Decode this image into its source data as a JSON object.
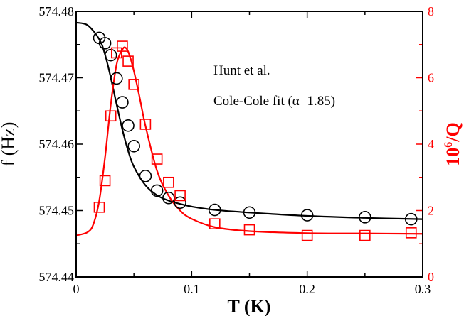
{
  "chart_data": {
    "type": "scatter",
    "title": "",
    "annotations": [
      "Hunt et al.",
      "Cole-Cole fit (α=1.85)"
    ],
    "x_axis": {
      "label": "T (K)",
      "min": 0,
      "max": 0.3,
      "ticks": [
        0,
        0.1,
        0.2,
        0.3
      ],
      "tick_labels": [
        "0",
        "0.1",
        "0.2",
        "0.3"
      ]
    },
    "y_axis_left": {
      "label": "f (Hz)",
      "min": 574.44,
      "max": 574.48,
      "ticks": [
        574.44,
        574.45,
        574.46,
        574.47,
        574.48
      ],
      "tick_labels": [
        "574.44",
        "574.45",
        "574.46",
        "574.47",
        "574.48"
      ],
      "color": "#000000"
    },
    "y_axis_right": {
      "label_base": "10",
      "label_sup": "6",
      "label_tail": "/Q",
      "min": 0,
      "max": 8,
      "ticks": [
        0,
        2,
        4,
        6,
        8
      ],
      "tick_labels": [
        "0",
        "2",
        "4",
        "6",
        "8"
      ],
      "color": "#ff0000"
    },
    "series": [
      {
        "marker": "circle",
        "axis": "left",
        "color": "#000000",
        "x": [
          0.02,
          0.025,
          0.03,
          0.035,
          0.04,
          0.045,
          0.05,
          0.06,
          0.07,
          0.08,
          0.09,
          0.12,
          0.15,
          0.2,
          0.25,
          0.29
        ],
        "y": [
          574.476,
          574.4752,
          574.4734,
          574.4699,
          574.4663,
          574.4628,
          574.4597,
          574.4552,
          574.453,
          574.4519,
          574.4512,
          574.4501,
          574.4497,
          574.4493,
          574.449,
          574.4487
        ]
      },
      {
        "marker": "square",
        "axis": "right",
        "color": "#ff0000",
        "x": [
          0.02,
          0.025,
          0.03,
          0.035,
          0.04,
          0.045,
          0.05,
          0.06,
          0.07,
          0.08,
          0.09,
          0.12,
          0.15,
          0.2,
          0.25,
          0.29
        ],
        "y": [
          2.1,
          2.9,
          4.85,
          6.75,
          6.95,
          6.5,
          5.8,
          4.6,
          3.55,
          2.85,
          2.45,
          1.6,
          1.42,
          1.25,
          1.25,
          1.33
        ]
      },
      {
        "marker": "line",
        "axis": "left",
        "color": "#000000",
        "x": [
          0,
          0.01,
          0.02,
          0.025,
          0.03,
          0.035,
          0.04,
          0.045,
          0.05,
          0.06,
          0.07,
          0.08,
          0.09,
          0.1,
          0.12,
          0.15,
          0.2,
          0.25,
          0.3
        ],
        "y": [
          574.4783,
          574.4779,
          574.4758,
          574.4735,
          574.47,
          574.466,
          574.4622,
          574.459,
          574.4566,
          574.4538,
          574.4523,
          574.4515,
          574.451,
          574.4506,
          574.4501,
          574.4497,
          574.4492,
          574.4489,
          574.4487
        ]
      },
      {
        "marker": "line",
        "axis": "right",
        "color": "#ff0000",
        "x": [
          0,
          0.01,
          0.015,
          0.02,
          0.025,
          0.03,
          0.035,
          0.04,
          0.043,
          0.046,
          0.05,
          0.055,
          0.06,
          0.07,
          0.08,
          0.09,
          0.1,
          0.12,
          0.15,
          0.2,
          0.25,
          0.3
        ],
        "y": [
          1.25,
          1.35,
          1.6,
          2.3,
          3.6,
          5.2,
          6.4,
          6.85,
          6.9,
          6.7,
          6.2,
          5.4,
          4.55,
          3.2,
          2.45,
          2.0,
          1.75,
          1.5,
          1.38,
          1.32,
          1.31,
          1.3
        ]
      }
    ]
  }
}
